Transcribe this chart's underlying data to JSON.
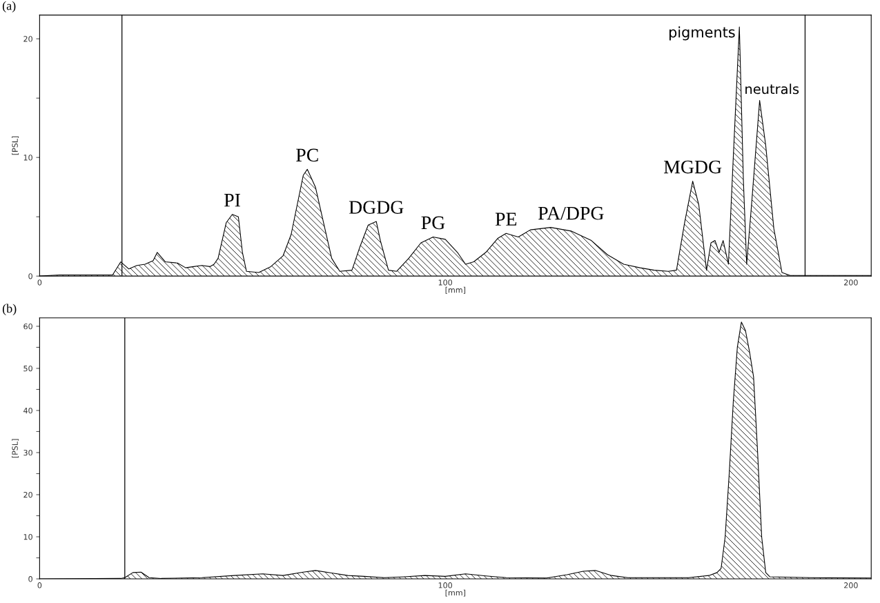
{
  "chart_data": [
    {
      "type": "area",
      "title": "(a)",
      "xlabel": "[mm]",
      "ylabel": "[PSL]",
      "xlim": [
        0,
        205
      ],
      "ylim": [
        0,
        22
      ],
      "xticks": [
        0,
        100,
        200
      ],
      "yticks": [
        0,
        {
          "value": 5,
          "label": null
        },
        10,
        {
          "value": 15,
          "label": null
        },
        20
      ],
      "grid": false,
      "legend": false,
      "ref_lines": [
        {
          "axis": "x",
          "value": 20.3,
          "label": null,
          "color": "#000000"
        },
        {
          "axis": "x",
          "value": 188.7,
          "label": null,
          "color": "#000000"
        }
      ],
      "annotations": [
        {
          "text": "PI",
          "x": 47.5,
          "y": 5.2
        },
        {
          "text": "PC",
          "x": 66,
          "y": 9.0
        },
        {
          "text": "DGDG",
          "x": 83,
          "y": 4.6
        },
        {
          "text": "PG",
          "x": 97,
          "y": 3.3
        },
        {
          "text": "PE",
          "x": 115,
          "y": 3.6
        },
        {
          "text": "PA/DPG",
          "x": 131,
          "y": 4.1
        },
        {
          "text": "MGDG",
          "x": 161,
          "y": 8.0
        },
        {
          "text": "pigments",
          "x": 172.5,
          "y": 21.0
        },
        {
          "text": "neutrals",
          "x": 177.5,
          "y": 14.8
        }
      ],
      "series": [
        {
          "color": "#000000",
          "x": [
            0,
            5,
            18,
            20,
            22,
            24,
            26,
            28,
            29,
            31,
            34,
            36,
            38,
            40,
            42,
            43,
            44,
            46,
            47.5,
            49,
            50,
            51,
            54,
            57,
            60,
            62,
            65,
            66,
            68,
            70,
            72,
            74,
            77,
            79,
            81,
            83,
            84,
            86,
            88,
            91,
            94,
            97,
            100,
            103,
            105,
            107,
            110,
            113,
            115,
            118,
            121,
            126,
            131,
            136,
            140,
            144,
            148,
            151.5,
            155,
            157,
            159,
            161,
            162.5,
            164.4,
            165.5,
            166.5,
            167.5,
            168.5,
            169.8,
            171,
            172.5,
            173.5,
            174.3,
            175.5,
            177.5,
            179,
            181,
            183,
            185,
            205
          ],
          "values": [
            0,
            0.1,
            0.1,
            1.2,
            0.6,
            0.9,
            1.0,
            1.3,
            2.0,
            1.2,
            1.1,
            0.7,
            0.8,
            0.9,
            0.8,
            1.0,
            1.5,
            4.5,
            5.2,
            5.0,
            2.0,
            0.4,
            0.3,
            0.8,
            1.7,
            3.5,
            8.5,
            9.0,
            7.5,
            4.5,
            1.5,
            0.4,
            0.5,
            2.5,
            4.3,
            4.6,
            3.0,
            0.5,
            0.4,
            1.5,
            2.8,
            3.3,
            3.1,
            2.0,
            1.0,
            1.2,
            2.0,
            3.2,
            3.6,
            3.3,
            3.9,
            4.1,
            3.8,
            3.0,
            1.8,
            1.0,
            0.7,
            0.5,
            0.4,
            0.5,
            4.5,
            8.0,
            6.0,
            0.5,
            2.8,
            3.0,
            2.0,
            3.0,
            1.0,
            10.0,
            21.0,
            8.0,
            1.0,
            6.0,
            14.8,
            11.0,
            4.0,
            0.3,
            0.05,
            0.05
          ]
        }
      ]
    },
    {
      "type": "area",
      "title": "(b)",
      "xlabel": "[mm]",
      "ylabel": "[PSL]",
      "xlim": [
        0,
        205
      ],
      "ylim": [
        0,
        62
      ],
      "xticks": [
        0,
        100,
        200
      ],
      "yticks": [
        0,
        {
          "value": 5,
          "label": null
        },
        10,
        {
          "value": 15,
          "label": null
        },
        20,
        {
          "value": 25,
          "label": null
        },
        30,
        {
          "value": 35,
          "label": null
        },
        40,
        {
          "value": 45,
          "label": null
        },
        50,
        {
          "value": 55,
          "label": null
        },
        60
      ],
      "grid": false,
      "legend": false,
      "ref_lines": [
        {
          "axis": "x",
          "value": 21,
          "label": null,
          "color": "#000000"
        }
      ],
      "series": [
        {
          "color": "#000000",
          "x": [
            0,
            20,
            21,
            23,
            25,
            27,
            30,
            40,
            48,
            55,
            60,
            65,
            68,
            72,
            76,
            80,
            85,
            90,
            95,
            100,
            105,
            110,
            115,
            125,
            130,
            134,
            137,
            141,
            145,
            160,
            165,
            167,
            168,
            169,
            170,
            171,
            172,
            173,
            174,
            175,
            176,
            177,
            178,
            179,
            180,
            190,
            205
          ],
          "values": [
            0,
            0.1,
            0.3,
            1.5,
            1.6,
            0.3,
            0.1,
            0.3,
            0.8,
            1.2,
            0.8,
            1.6,
            2.0,
            1.4,
            0.8,
            0.6,
            0.3,
            0.5,
            0.8,
            0.6,
            1.2,
            0.7,
            0.3,
            0.2,
            1.0,
            1.8,
            2.0,
            0.8,
            0.3,
            0.3,
            0.8,
            1.5,
            2.5,
            10,
            25,
            42,
            55,
            61,
            59,
            54,
            48,
            30,
            10,
            1.5,
            0.5,
            0.3,
            0.2
          ]
        }
      ]
    }
  ]
}
